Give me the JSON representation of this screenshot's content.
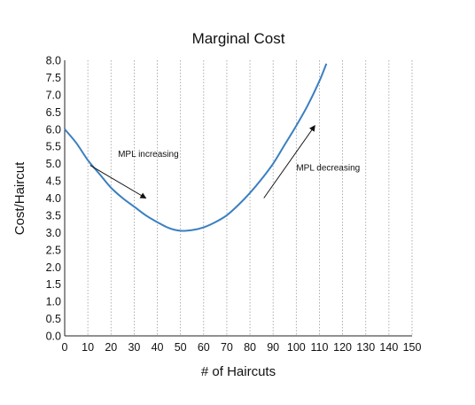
{
  "chart_data": {
    "type": "line",
    "title": "Marginal Cost",
    "xlabel": "# of Haircuts",
    "ylabel": "Cost/Haircut",
    "xlim": [
      0,
      150
    ],
    "ylim": [
      0,
      8
    ],
    "x_ticks": [
      "0",
      "10",
      "20",
      "30",
      "40",
      "50",
      "60",
      "70",
      "80",
      "90",
      "100",
      "110",
      "120",
      "130",
      "140",
      "150"
    ],
    "y_ticks": [
      "0.0",
      "0.5",
      "1.0",
      "1.5",
      "2.0",
      "2.5",
      "3.0",
      "3.5",
      "4.0",
      "4.5",
      "5.0",
      "5.5",
      "6.0",
      "6.5",
      "7.0",
      "7.5",
      "8.0"
    ],
    "grid": true,
    "series": [
      {
        "color": "#3a7fc1",
        "x": [
          0,
          5,
          10,
          15,
          20,
          25,
          30,
          35,
          40,
          45,
          50,
          55,
          60,
          65,
          70,
          75,
          80,
          85,
          90,
          95,
          100,
          105,
          110,
          113
        ],
        "y": [
          6.0,
          5.6,
          5.1,
          4.7,
          4.3,
          4.0,
          3.75,
          3.5,
          3.3,
          3.13,
          3.05,
          3.07,
          3.15,
          3.3,
          3.5,
          3.8,
          4.15,
          4.55,
          5.0,
          5.55,
          6.1,
          6.7,
          7.4,
          7.9
        ]
      }
    ],
    "annotations": [
      {
        "text": "MPL increasing",
        "x": 23,
        "y": 5.2,
        "arrow_from": [
          11,
          4.95
        ],
        "arrow_to": [
          35,
          4.0
        ]
      },
      {
        "text": "MPL decreasing",
        "x": 100,
        "y": 4.8,
        "arrow_from": [
          86,
          4.0
        ],
        "arrow_to": [
          108,
          6.1
        ]
      }
    ]
  }
}
